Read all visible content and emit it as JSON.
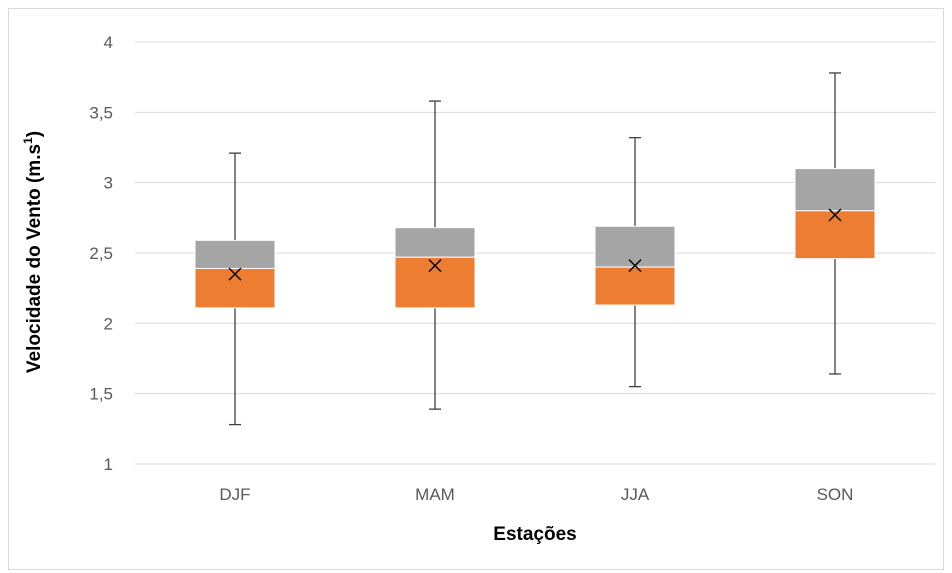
{
  "chart_data": {
    "type": "box",
    "xlabel": "Estações",
    "ylabel": "Velocidade do Vento (m.s",
    "ylabel_sup": "1",
    "ylabel_close": ")",
    "ylim": [
      1,
      4
    ],
    "yticks": [
      1,
      1.5,
      2,
      2.5,
      3,
      3.5,
      4
    ],
    "ytick_labels": [
      "1",
      "1,5",
      "2",
      "2,5",
      "3",
      "3,5",
      "4"
    ],
    "categories": [
      "DJF",
      "MAM",
      "JJA",
      "SON"
    ],
    "boxes": [
      {
        "category": "DJF",
        "min": 1.28,
        "q1": 2.11,
        "median": 2.39,
        "q3": 2.59,
        "max": 3.21,
        "mean": 2.35
      },
      {
        "category": "MAM",
        "min": 1.39,
        "q1": 2.11,
        "median": 2.47,
        "q3": 2.68,
        "max": 3.58,
        "mean": 2.41
      },
      {
        "category": "JJA",
        "min": 1.55,
        "q1": 2.13,
        "median": 2.4,
        "q3": 2.69,
        "max": 3.32,
        "mean": 2.41
      },
      {
        "category": "SON",
        "min": 1.64,
        "q1": 2.46,
        "median": 2.8,
        "q3": 3.1,
        "max": 3.78,
        "mean": 2.77
      }
    ],
    "colors": {
      "lower_box": "#ed7d31",
      "upper_box": "#a5a5a5",
      "whisker": "#404040",
      "grid": "#d9d9d9"
    },
    "grid": true,
    "legend": "none"
  }
}
